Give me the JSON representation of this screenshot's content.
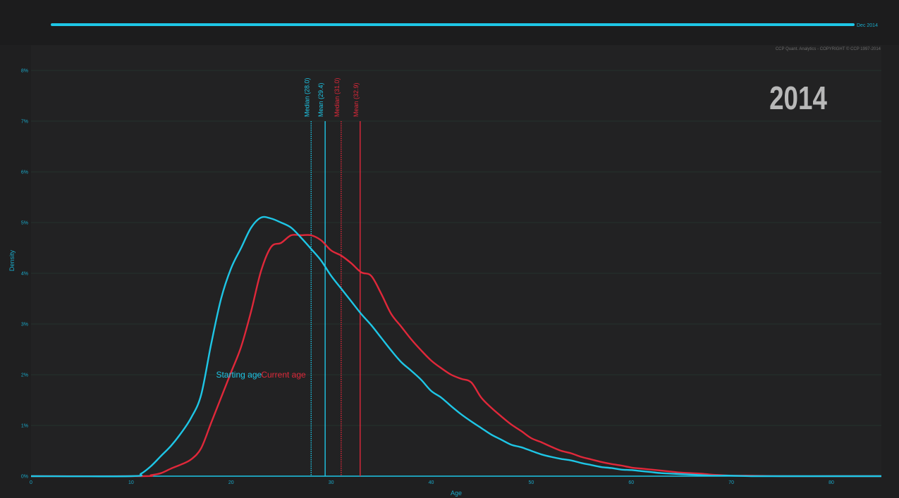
{
  "timeline": {
    "label": "Dec 2014",
    "progress": 1.0
  },
  "copyright": "CCP Quant. Analytics - COPYRIGHT © CCP 1997-2014",
  "year_label": "2014",
  "colors": {
    "background": "#1f1f20",
    "plot_background": "#222223",
    "grid": "#263a33",
    "axis_text": "#1aa9c9",
    "starting": "#1ec6e6",
    "current": "#e0283a",
    "year": "#b8b8b8"
  },
  "chart_data": {
    "type": "line",
    "title": "",
    "xlabel": "Age",
    "ylabel": "Density",
    "xlim": [
      0,
      85
    ],
    "ylim": [
      0,
      0.085
    ],
    "x_ticks": [
      0,
      10,
      20,
      30,
      40,
      50,
      60,
      70,
      80
    ],
    "y_ticks": [
      0,
      0.01,
      0.02,
      0.03,
      0.04,
      0.05,
      0.06,
      0.07,
      0.08
    ],
    "y_tick_labels": [
      "0%",
      "1%",
      "2%",
      "3%",
      "4%",
      "5%",
      "6%",
      "7%",
      "8%"
    ],
    "grid": true,
    "series": [
      {
        "name": "Starting age",
        "x": [
          0,
          10,
          11,
          12,
          13,
          14,
          15,
          16,
          17,
          18,
          19,
          20,
          21,
          22,
          23,
          24,
          25,
          26,
          27,
          28,
          29,
          30,
          31,
          32,
          33,
          34,
          35,
          36,
          37,
          38,
          39,
          40,
          41,
          42,
          43,
          44,
          45,
          46,
          47,
          48,
          49,
          50,
          51,
          52,
          53,
          54,
          55,
          56,
          57,
          58,
          59,
          60,
          61,
          62,
          63,
          64,
          65,
          66,
          67,
          68,
          69,
          70,
          72,
          75,
          80,
          85
        ],
        "values": [
          0,
          0,
          0.0005,
          0.002,
          0.004,
          0.006,
          0.0085,
          0.0115,
          0.016,
          0.026,
          0.035,
          0.041,
          0.045,
          0.049,
          0.051,
          0.0508,
          0.05,
          0.049,
          0.047,
          0.0448,
          0.0425,
          0.0395,
          0.037,
          0.0345,
          0.032,
          0.0298,
          0.0273,
          0.0248,
          0.0225,
          0.0208,
          0.019,
          0.0168,
          0.0155,
          0.0138,
          0.0122,
          0.0108,
          0.0095,
          0.0082,
          0.0072,
          0.0062,
          0.0057,
          0.005,
          0.0043,
          0.0038,
          0.0034,
          0.0031,
          0.0026,
          0.0022,
          0.0018,
          0.0016,
          0.0013,
          0.0012,
          0.001,
          0.0008,
          0.0006,
          0.0005,
          0.0004,
          0.0003,
          0.0002,
          0.0001,
          0.0001,
          0.0001,
          0,
          0,
          0,
          0
        ]
      },
      {
        "name": "Current age",
        "x": [
          0,
          11,
          12,
          13,
          14,
          15,
          16,
          17,
          18,
          19,
          20,
          21,
          22,
          23,
          24,
          25,
          26,
          27,
          28,
          29,
          30,
          31,
          32,
          33,
          34,
          35,
          36,
          37,
          38,
          39,
          40,
          41,
          42,
          43,
          44,
          45,
          46,
          47,
          48,
          49,
          50,
          51,
          52,
          53,
          54,
          55,
          56,
          57,
          58,
          59,
          60,
          61,
          62,
          63,
          64,
          65,
          66,
          67,
          68,
          69,
          70,
          72,
          75,
          80,
          85
        ],
        "values": [
          0,
          0,
          0.0002,
          0.0006,
          0.0015,
          0.0023,
          0.0033,
          0.0055,
          0.0105,
          0.0155,
          0.0205,
          0.0255,
          0.0325,
          0.0405,
          0.0452,
          0.046,
          0.0475,
          0.0475,
          0.0475,
          0.0465,
          0.0445,
          0.0435,
          0.042,
          0.0402,
          0.0395,
          0.036,
          0.032,
          0.0295,
          0.027,
          0.0248,
          0.0228,
          0.0213,
          0.02,
          0.0192,
          0.0185,
          0.0155,
          0.0135,
          0.0118,
          0.0102,
          0.0089,
          0.0075,
          0.0067,
          0.0058,
          0.005,
          0.0045,
          0.0038,
          0.0033,
          0.0028,
          0.0024,
          0.0021,
          0.0017,
          0.0015,
          0.0013,
          0.0011,
          0.0009,
          0.0007,
          0.0006,
          0.0005,
          0.0003,
          0.0002,
          0.0001,
          0.0001,
          0,
          0,
          0
        ]
      }
    ],
    "annotations": [
      {
        "label": "Median (28.0)",
        "x": 28.0,
        "series": "Starting age",
        "style": "dotted"
      },
      {
        "label": "Mean (29.4)",
        "x": 29.4,
        "series": "Starting age",
        "style": "solid"
      },
      {
        "label": "Median (31.0)",
        "x": 31.0,
        "series": "Current age",
        "style": "dotted"
      },
      {
        "label": "Mean (32.9)",
        "x": 32.9,
        "series": "Current age",
        "style": "solid"
      }
    ],
    "series_labels": [
      {
        "text": "Starting age",
        "x": 18.5,
        "y": 0.02,
        "series": "Starting age"
      },
      {
        "text": "Current age",
        "x": 23,
        "y": 0.02,
        "series": "Current age"
      }
    ]
  }
}
